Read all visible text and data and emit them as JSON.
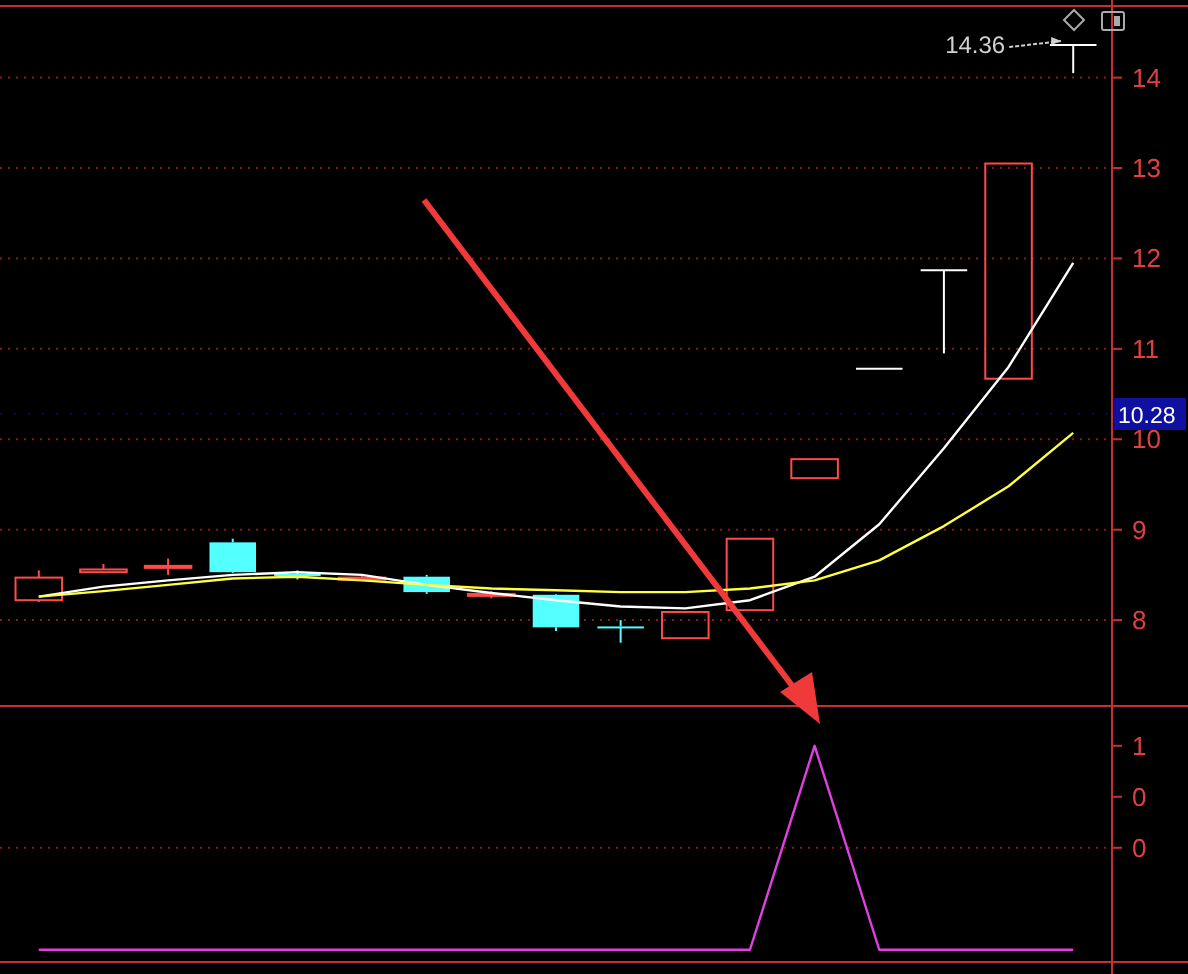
{
  "chart_data": [
    {
      "type": "candlestick",
      "categories": [
        null,
        null,
        null,
        null,
        null,
        null,
        null,
        null,
        null,
        null,
        null,
        null,
        null,
        null,
        null,
        null,
        null
      ],
      "ohlc": [
        [
          8.22,
          8.55,
          8.2,
          8.47
        ],
        [
          8.53,
          8.62,
          8.52,
          8.56
        ],
        [
          8.58,
          8.68,
          8.5,
          8.6
        ],
        [
          8.86,
          8.9,
          8.52,
          8.53
        ],
        [
          8.51,
          8.55,
          8.45,
          8.5
        ],
        [
          8.45,
          8.5,
          8.44,
          8.47
        ],
        [
          8.48,
          8.5,
          8.29,
          8.31
        ],
        [
          8.27,
          8.32,
          8.24,
          8.29
        ],
        [
          8.28,
          8.29,
          7.88,
          7.92
        ],
        [
          7.93,
          8.0,
          7.75,
          7.92
        ],
        [
          7.8,
          8.09,
          7.8,
          8.09
        ],
        [
          8.11,
          8.9,
          8.11,
          8.9
        ],
        [
          9.57,
          9.78,
          9.57,
          9.78
        ],
        [
          10.78,
          10.78,
          10.78,
          10.78
        ],
        [
          11.87,
          11.87,
          10.95,
          11.87
        ],
        [
          10.67,
          13.05,
          10.67,
          13.05
        ],
        [
          14.36,
          14.36,
          14.05,
          14.36
        ]
      ],
      "series": [
        {
          "type": "line",
          "color": "#ffffff",
          "values": [
            8.26,
            8.37,
            8.44,
            8.5,
            8.53,
            8.5,
            8.39,
            8.3,
            8.22,
            8.15,
            8.13,
            8.22,
            8.48,
            9.06,
            9.9,
            10.8,
            11.95
          ]
        },
        {
          "type": "line",
          "color": "#ffff40",
          "values": [
            8.26,
            8.32,
            8.39,
            8.46,
            8.48,
            8.44,
            8.39,
            8.35,
            8.33,
            8.31,
            8.31,
            8.35,
            8.44,
            8.66,
            9.04,
            9.48,
            10.07
          ]
        }
      ],
      "ylim": [
        7.05,
        14.77
      ],
      "yticks": [
        8,
        9,
        10,
        11,
        12,
        13,
        14
      ],
      "grid": "y",
      "tick_labels": "y",
      "annotations": [
        "14.36"
      ],
      "ref_lines": [
        {
          "axis": "y",
          "value": 10.28,
          "label": "10.28",
          "color": "#1010a0"
        }
      ]
    },
    {
      "type": "line",
      "categories": [
        null,
        null,
        null,
        null,
        null,
        null,
        null,
        null,
        null,
        null,
        null,
        null,
        null,
        null,
        null,
        null,
        null
      ],
      "series": [
        {
          "color": "#e040e0",
          "values": [
            -1,
            -1,
            -1,
            -1,
            -1,
            -1,
            -1,
            -1,
            -1,
            -1,
            -1,
            -1,
            1,
            -1,
            -1,
            -1,
            -1
          ]
        }
      ],
      "ylim": [
        -1.12,
        1.39
      ],
      "yticks": [
        1,
        {
          "value": 0.5,
          "label": "0"
        },
        0
      ],
      "tick_labels": "y",
      "ref_lines": [
        {
          "axis": "y",
          "value": 0,
          "line_style": "dotted"
        }
      ]
    }
  ]
}
